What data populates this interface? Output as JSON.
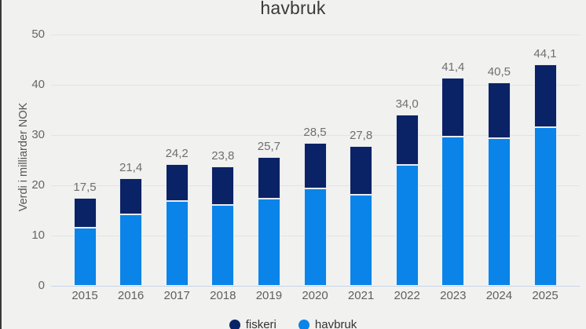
{
  "chart_data": {
    "type": "bar",
    "stacked": true,
    "title": "havbruk",
    "ylabel": "Verdi i milliarder NOK",
    "xlabel": "",
    "ylim": [
      0,
      50
    ],
    "yticks": [
      0,
      10,
      20,
      30,
      40,
      50
    ],
    "grid": true,
    "legend_position": "bottom",
    "categories": [
      "2015",
      "2016",
      "2017",
      "2018",
      "2019",
      "2020",
      "2021",
      "2022",
      "2023",
      "2024",
      "2025"
    ],
    "series": [
      {
        "name": "fiskeri",
        "color": "#0a2266",
        "values": [
          6.0,
          7.2,
          7.4,
          7.7,
          8.4,
          9.2,
          9.7,
          9.9,
          11.7,
          11.1,
          12.5
        ]
      },
      {
        "name": "havbruk",
        "color": "#0a84e8",
        "values": [
          11.5,
          14.2,
          16.8,
          16.1,
          17.3,
          19.3,
          18.1,
          24.1,
          29.7,
          29.4,
          31.6
        ]
      }
    ],
    "stack_bottom_to_top": [
      "havbruk",
      "fiskeri"
    ],
    "totals": [
      17.5,
      21.4,
      24.2,
      23.8,
      25.7,
      28.5,
      27.8,
      34.0,
      41.4,
      40.5,
      44.1
    ],
    "total_labels": [
      "17,5",
      "21,4",
      "24,2",
      "23,8",
      "25,7",
      "28,5",
      "27,8",
      "34,0",
      "41,4",
      "40,5",
      "44,1"
    ]
  },
  "colors": {
    "background": "#f1f1ef",
    "gridline": "#e3e3e1",
    "baseline": "#c9d5ec",
    "navy": "#0a2266",
    "blue": "#0a84e8"
  }
}
